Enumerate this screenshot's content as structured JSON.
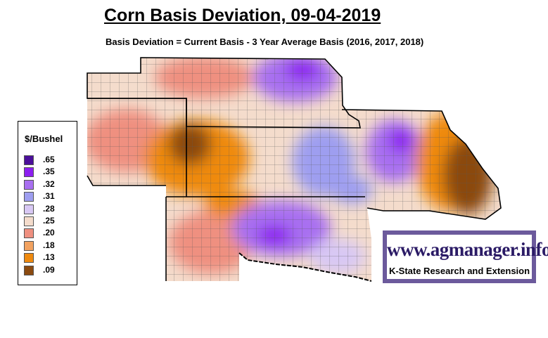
{
  "title": "Corn Basis Deviation, 09-04-2019",
  "subtitle": "Basis Deviation = Current Basis - 3 Year Average Basis (2016, 2017, 2018)",
  "legend": {
    "title": "$/Bushel",
    "items": [
      {
        "label": ".65",
        "color": "#4b0f9a"
      },
      {
        "label": ".35",
        "color": "#8c1ef0"
      },
      {
        "label": ".32",
        "color": "#a86ff0"
      },
      {
        "label": ".31",
        "color": "#9e9ef0"
      },
      {
        "label": ".28",
        "color": "#d8c8f4"
      },
      {
        "label": ".25",
        "color": "#f4dccc"
      },
      {
        "label": ".20",
        "color": "#ef9080"
      },
      {
        "label": ".18",
        "color": "#f2a260"
      },
      {
        "label": ".13",
        "color": "#ef8a10"
      },
      {
        "label": ".09",
        "color": "#8b4a10"
      }
    ]
  },
  "brand": {
    "url": "www.agmanager.info",
    "org": "K-State Research and Extension"
  },
  "map_colors": {
    "background_base": "#f4dccc",
    "state_border": "#000000",
    "county_border": "#5a5a5a"
  }
}
